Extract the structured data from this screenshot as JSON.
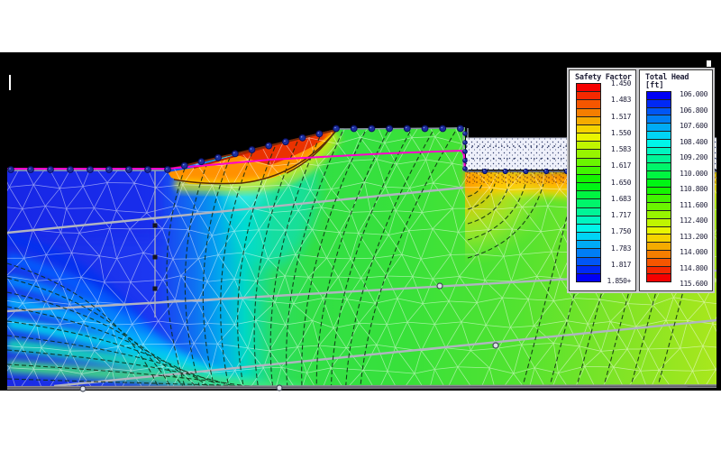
{
  "window": {
    "canvas_background": "#000000",
    "margin_band_color": "#ffffff"
  },
  "legends": {
    "safety_factor": {
      "title": "Safety Factor",
      "labels": [
        "1.450",
        "1.483",
        "1.517",
        "1.550",
        "1.583",
        "1.617",
        "1.650",
        "1.683",
        "1.717",
        "1.750",
        "1.783",
        "1.817",
        "1.850+"
      ],
      "cell_count": 24,
      "ramp_top": "#ff0000",
      "ramp_bottom": "#0000e8"
    },
    "total_head": {
      "title": "Total Head",
      "unit": "[ft]",
      "labels": [
        "106.000",
        "106.800",
        "107.600",
        "108.400",
        "109.200",
        "110.000",
        "110.800",
        "111.600",
        "112.400",
        "113.200",
        "114.000",
        "114.800",
        "115.600"
      ],
      "cell_count": 24,
      "ramp_top": "#0000e8",
      "ramp_bottom": "#ff0000"
    }
  },
  "model": {
    "phreatic_line_color": "#ff00cc",
    "node_color": "#1d2f9e",
    "node_ring_color": "#0a1060",
    "mesh_line_color": "#ffffff",
    "material_boundary_color": "#b0b4c0",
    "contour_line_color": "#0c2a12",
    "slip_zone_colors": [
      "#e82800",
      "#ff9100",
      "#ffe800",
      "#c8e820"
    ],
    "head_fill_stops": [
      "#1a2ae4",
      "#00a8ee",
      "#00d8c4",
      "#31df45",
      "#52e330",
      "#a9e71c"
    ],
    "water_region_fill": "#eef0fa",
    "surface_band_color": "#ff7a00"
  },
  "chart_data": [
    {
      "type": "heatmap",
      "name": "Safety Factor",
      "legend_min": 1.45,
      "legend_max": 1.85,
      "legend_step": 0.0333,
      "ticks": [
        1.45,
        1.483,
        1.517,
        1.55,
        1.583,
        1.617,
        1.65,
        1.683,
        1.717,
        1.75,
        1.783,
        1.817,
        1.85
      ],
      "open_ended_max": true,
      "legend_position": "top-right",
      "notes": "Contoured finite-element slope model; red/orange crescent of low safety factor along slope face"
    },
    {
      "type": "heatmap",
      "name": "Total Head",
      "unit": "ft",
      "legend_min": 106.0,
      "legend_max": 115.6,
      "legend_step": 0.8,
      "ticks": [
        106.0,
        106.8,
        107.6,
        108.4,
        109.2,
        110.0,
        110.8,
        111.6,
        112.4,
        113.2,
        114.0,
        114.8,
        115.6
      ],
      "legend_position": "top-right",
      "notes": "Total head field: ~106 ft (blue) at left toe region grading to ~115 ft (orange/red) below pond right of cutoff wall; dashed equipotential contours converge at wall tip"
    }
  ]
}
